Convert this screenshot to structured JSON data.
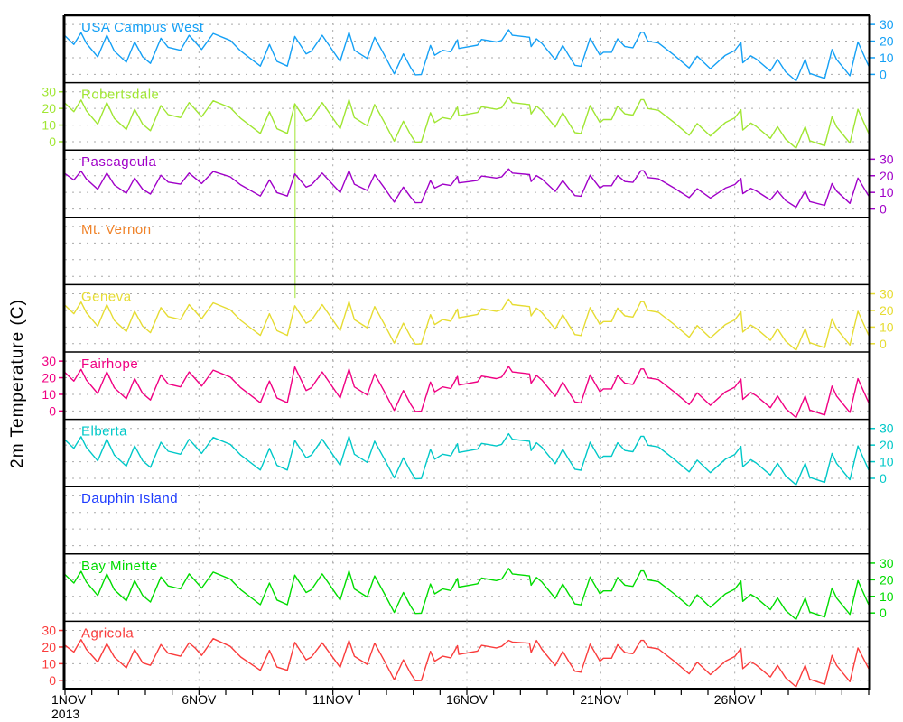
{
  "chart_data": {
    "type": "line",
    "ylabel": "2m Temperature (C)",
    "ylim": [
      -5,
      35.5
    ],
    "yticks": [
      0,
      10,
      20,
      30
    ],
    "xlim_days": [
      0,
      30
    ],
    "x_tick_labels": [
      {
        "day": 0,
        "label": "1NOV",
        "sub": "2013"
      },
      {
        "day": 5,
        "label": "6NOV"
      },
      {
        "day": 10,
        "label": "11NOV"
      },
      {
        "day": 15,
        "label": "16NOV"
      },
      {
        "day": 20,
        "label": "21NOV"
      },
      {
        "day": 25,
        "label": "26NOV"
      }
    ],
    "days": [
      0,
      0.33,
      0.6,
      0.8,
      1.22,
      1.56,
      1.84,
      2.29,
      2.6,
      2.9,
      3.19,
      3.58,
      3.85,
      4.31,
      4.63,
      4.87,
      5.1,
      5.53,
      6.17,
      6.56,
      7.29,
      7.63,
      7.91,
      8.3,
      8.58,
      9.0,
      9.2,
      9.6,
      10.27,
      10.6,
      10.8,
      11.28,
      11.56,
      11.9,
      12.29,
      12.63,
      12.9,
      13.08,
      13.3,
      13.64,
      13.8,
      14.1,
      14.4,
      14.65,
      14.7,
      15.1,
      15.4,
      15.55,
      16.1,
      16.3,
      16.56,
      16.7,
      17.34,
      17.4,
      17.6,
      17.8,
      18.3,
      18.58,
      18.8,
      19.03,
      19.26,
      19.6,
      19.97,
      20.1,
      20.4,
      20.63,
      20.9,
      21.2,
      21.5,
      21.6,
      21.76,
      22.15,
      22.74,
      23.3,
      23.6,
      24.09,
      24.65,
      25.0,
      25.23,
      25.3,
      25.6,
      25.8,
      26.33,
      26.6,
      26.9,
      27.29,
      27.63,
      27.8,
      28.36,
      28.63,
      28.8,
      29.3,
      29.6,
      30.0
    ],
    "series": [
      {
        "name": "USA Campus West",
        "color": "#14a0f5",
        "axis": "right",
        "values": [
          23.1,
          18,
          25,
          18.6,
          10.5,
          23.5,
          14,
          7.3,
          19.5,
          10.5,
          6.6,
          21.7,
          16.3,
          14.5,
          23.5,
          19.2,
          15,
          24.6,
          20.4,
          14,
          5,
          18,
          7.8,
          5,
          22.8,
          12.3,
          14,
          23.5,
          7.8,
          25.3,
          14.5,
          9.6,
          22.3,
          12.3,
          0.3,
          12.3,
          4.2,
          -0.3,
          -0.1,
          17.4,
          11.5,
          14.5,
          13.5,
          20.8,
          15.6,
          16.7,
          17.6,
          21,
          19.5,
          20.4,
          26.8,
          23.5,
          22.3,
          16.7,
          21.4,
          18.6,
          8.8,
          17.4,
          11.5,
          5.5,
          4.9,
          21.7,
          11.5,
          13.3,
          13.3,
          21.4,
          16.7,
          16,
          25.3,
          25.3,
          19.9,
          18.9,
          11.5,
          3.9,
          10.9,
          3.4,
          11.5,
          14.3,
          19.2,
          7,
          11.2,
          9.2,
          2,
          9,
          1.5,
          -3.9,
          9,
          0.6,
          -2.4,
          15,
          9,
          -0.8,
          19.5,
          5
        ]
      },
      {
        "name": "Robertsdale",
        "color": "#a0e632",
        "axis": "left",
        "spike": {
          "day": 8.59,
          "value": -94
        },
        "values": [
          23.1,
          18,
          25,
          18.6,
          10.5,
          23.5,
          14,
          7.3,
          19.5,
          10.5,
          6.6,
          21.7,
          16.3,
          14.5,
          23.5,
          19.2,
          15,
          24.6,
          20.4,
          14,
          5,
          18,
          7.8,
          5,
          22.8,
          12.3,
          14,
          23.5,
          7.8,
          25.3,
          14.5,
          9.6,
          22.3,
          12.3,
          0.3,
          12.3,
          4.2,
          -0.3,
          -0.1,
          17.4,
          11.5,
          14.5,
          13.5,
          20.8,
          15.6,
          16.7,
          17.6,
          21,
          19.5,
          20.4,
          26.8,
          23.5,
          22.3,
          16.7,
          21.4,
          18.6,
          8.8,
          17.4,
          11.5,
          5.5,
          4.9,
          21.7,
          11.5,
          13.3,
          13.3,
          21.4,
          16.7,
          16,
          25.3,
          25.3,
          19.9,
          18.9,
          11.5,
          3.9,
          10.9,
          3.4,
          11.5,
          14.3,
          19.2,
          7,
          11.2,
          9.2,
          2,
          9,
          1.5,
          -3.9,
          9,
          0.6,
          -2.4,
          15,
          9,
          -0.8,
          19.5,
          5
        ]
      },
      {
        "name": "Pascagoula",
        "color": "#a000c8",
        "axis": "right",
        "values": [
          21.3,
          17.5,
          22.8,
          18,
          11.9,
          21.6,
          14.5,
          9.5,
          18.6,
          11.9,
          9,
          20.3,
          16.2,
          14.9,
          21.6,
          18.4,
          15.3,
          22.5,
          19.3,
          14.5,
          7.8,
          17.5,
          9.9,
          7.8,
          21.1,
          13.2,
          14.5,
          21.6,
          9.9,
          23,
          14.9,
          11.2,
          20.7,
          13.2,
          4.2,
          13.2,
          7.2,
          3.8,
          3.9,
          17.1,
          12.6,
          14.9,
          14.1,
          19.6,
          15.7,
          16.5,
          17.2,
          19.8,
          18.6,
          19.3,
          24.1,
          21.6,
          20.7,
          16.5,
          20.1,
          18,
          10.6,
          17.1,
          12.6,
          8.1,
          7.7,
          20.3,
          12.6,
          14,
          14,
          20.1,
          16.5,
          16,
          23,
          23,
          18.9,
          18.2,
          12.6,
          6.9,
          12.2,
          6.6,
          12.6,
          14.7,
          18.4,
          9.3,
          12.4,
          10.9,
          5.5,
          10.8,
          5.1,
          1.1,
          10.8,
          4.5,
          2.2,
          15.3,
          10.8,
          3.4,
          18.6,
          7.8
        ]
      },
      {
        "name": "Mt. Vernon",
        "color": "#f08228",
        "axis": "left",
        "values": []
      },
      {
        "name": "Geneva",
        "color": "#e6dc32",
        "axis": "right",
        "values": [
          23.1,
          18,
          25,
          18.6,
          10.5,
          23.5,
          14,
          7.3,
          19.5,
          10.5,
          6.6,
          21.7,
          16.3,
          14.5,
          23.5,
          19.2,
          15,
          24.6,
          20.4,
          14,
          5,
          18,
          7.8,
          5,
          22.8,
          12.3,
          14,
          23.5,
          7.8,
          25.3,
          14.5,
          9.6,
          22.3,
          12.3,
          0.3,
          12.3,
          4.2,
          -0.3,
          -0.1,
          17.4,
          11.5,
          14.5,
          13.5,
          20.8,
          15.6,
          16.7,
          17.6,
          21,
          19.5,
          20.4,
          26.8,
          23.5,
          22.3,
          16.7,
          21.4,
          18.6,
          8.8,
          17.4,
          11.5,
          5.5,
          4.9,
          21.7,
          11.5,
          13.3,
          13.3,
          21.4,
          16.7,
          16,
          25.3,
          25.3,
          19.9,
          18.9,
          11.5,
          3.9,
          10.9,
          3.4,
          11.5,
          14.3,
          19.2,
          7,
          11.2,
          9.2,
          2,
          9,
          1.5,
          -3.9,
          9,
          0.6,
          -2.4,
          15,
          9,
          -0.8,
          19.5,
          5
        ]
      },
      {
        "name": "Fairhope",
        "color": "#f00082",
        "axis": "left",
        "values": [
          23.1,
          18,
          25,
          18.6,
          10.5,
          23.5,
          14,
          7.3,
          19.5,
          10.5,
          6.6,
          21.7,
          16.3,
          14.5,
          23.5,
          19.2,
          15,
          24.6,
          20.4,
          14,
          5,
          18,
          7.8,
          5,
          26.5,
          12.3,
          14,
          23.5,
          7.8,
          25.3,
          14.5,
          9.6,
          22.3,
          12.3,
          0.3,
          12.3,
          4.2,
          -0.3,
          -0.1,
          17.4,
          11.5,
          14.5,
          13.5,
          20.8,
          15.6,
          16.7,
          17.6,
          21,
          19.5,
          20.4,
          26.8,
          23.5,
          22.3,
          16.7,
          21.4,
          18.6,
          8.8,
          17.4,
          11.5,
          5.5,
          4.9,
          21.7,
          11.5,
          13.3,
          13.3,
          21.4,
          16.7,
          16,
          25.3,
          25.3,
          19.9,
          18.9,
          11.5,
          3.9,
          10.9,
          3.4,
          11.5,
          14.3,
          19.2,
          7,
          11.2,
          9.2,
          2,
          9,
          1.5,
          -3.9,
          9,
          0.6,
          -2.4,
          15,
          9,
          -0.8,
          19.5,
          5
        ]
      },
      {
        "name": "Elberta",
        "color": "#00c8c8",
        "axis": "right",
        "values": [
          23.1,
          18,
          25,
          18.6,
          10.5,
          23.5,
          14,
          7.3,
          19.5,
          10.5,
          6.6,
          21.7,
          16.3,
          14.5,
          23.5,
          19.2,
          15,
          24.6,
          20.4,
          14,
          5,
          18,
          7.8,
          5,
          22.8,
          12.3,
          14,
          23.5,
          7.8,
          25.3,
          14.5,
          9.6,
          22.3,
          12.3,
          0.3,
          12.3,
          4.2,
          -0.3,
          -0.1,
          17.4,
          11.5,
          14.5,
          13.5,
          20.8,
          15.6,
          16.7,
          17.6,
          21,
          19.5,
          20.4,
          26.8,
          23.5,
          22.3,
          16.7,
          21.4,
          18.6,
          8.8,
          17.4,
          11.5,
          5.5,
          4.9,
          21.7,
          11.5,
          13.3,
          13.3,
          21.4,
          16.7,
          16,
          25.3,
          25.3,
          19.9,
          18.9,
          11.5,
          3.9,
          10.9,
          3.4,
          11.5,
          14.3,
          19.2,
          7,
          11.2,
          9.2,
          2,
          9,
          1.5,
          -3.9,
          9,
          0.6,
          -2.4,
          15,
          9,
          -0.8,
          19.5,
          5
        ]
      },
      {
        "name": "Dauphin Island",
        "color": "#1e3cff",
        "axis": "left",
        "values": []
      },
      {
        "name": "Bay Minette",
        "color": "#00dc00",
        "axis": "right",
        "values": [
          23.1,
          18,
          25,
          18.6,
          10.5,
          23.5,
          14,
          7.3,
          19.5,
          10.5,
          6.6,
          21.7,
          16.3,
          14.5,
          23.5,
          19.2,
          15,
          24.6,
          20.4,
          14,
          5,
          18,
          7.8,
          5,
          22.8,
          12.3,
          14,
          23.5,
          7.8,
          25.3,
          14.5,
          9.6,
          22.3,
          12.3,
          0.3,
          12.3,
          4.2,
          -0.3,
          -0.1,
          17.4,
          11.5,
          14.5,
          13.5,
          20.8,
          15.6,
          16.7,
          17.6,
          21,
          19.5,
          20.4,
          26.8,
          23.5,
          22.3,
          16.7,
          21.4,
          18.6,
          8.8,
          17.4,
          11.5,
          5.5,
          4.9,
          21.7,
          11.5,
          13.3,
          13.3,
          21.4,
          16.7,
          16,
          25.3,
          25.3,
          19.9,
          18.9,
          11.5,
          3.9,
          10.9,
          3.4,
          11.5,
          14.3,
          19.2,
          7,
          11.2,
          9.2,
          2,
          9,
          1.5,
          -3.9,
          9,
          0.6,
          -2.4,
          15,
          9,
          -0.8,
          19.5,
          5
        ]
      },
      {
        "name": "Agricola",
        "color": "#fa3c3c",
        "axis": "left",
        "values": [
          21,
          17,
          24.5,
          18.6,
          11,
          22,
          14,
          7.5,
          18.5,
          10.5,
          9,
          21.5,
          16.3,
          14.5,
          22.5,
          19.2,
          15,
          25,
          20.4,
          14,
          6,
          18,
          8,
          6,
          22.8,
          12.3,
          14,
          22.5,
          7.8,
          24,
          14.5,
          9.6,
          22.3,
          12.3,
          0.3,
          12.3,
          4.2,
          -0.3,
          -0.1,
          17.4,
          11.5,
          14.5,
          13.5,
          20.8,
          15.6,
          16.7,
          17.6,
          21,
          19.5,
          20.4,
          24,
          23,
          22.3,
          16.7,
          24,
          18.6,
          8.8,
          17.4,
          11.5,
          5.5,
          4.9,
          21.7,
          11.5,
          13.3,
          13.3,
          21.4,
          16.7,
          16,
          24,
          24,
          19.9,
          18.9,
          11.5,
          3.9,
          10.9,
          3.4,
          11.5,
          14.3,
          19.2,
          7,
          11.2,
          9.2,
          2,
          9,
          1.5,
          -3.9,
          9,
          0.6,
          -2.4,
          15,
          9,
          -0.8,
          19.5,
          7
        ]
      }
    ]
  }
}
